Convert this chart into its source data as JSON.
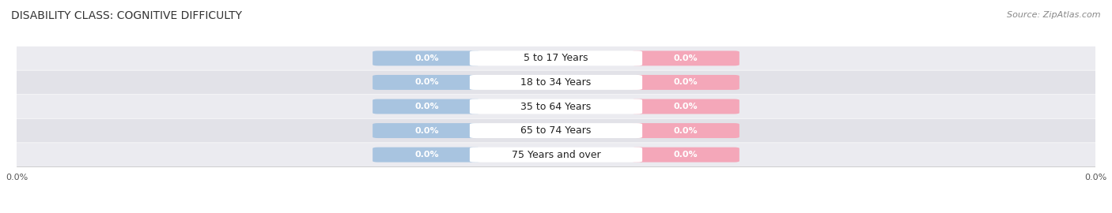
{
  "title": "DISABILITY CLASS: COGNITIVE DIFFICULTY",
  "source": "Source: ZipAtlas.com",
  "categories": [
    "5 to 17 Years",
    "18 to 34 Years",
    "35 to 64 Years",
    "65 to 74 Years",
    "75 Years and over"
  ],
  "male_values": [
    0.0,
    0.0,
    0.0,
    0.0,
    0.0
  ],
  "female_values": [
    0.0,
    0.0,
    0.0,
    0.0,
    0.0
  ],
  "male_color": "#a8c4e0",
  "female_color": "#f4a7b9",
  "title_fontsize": 10,
  "source_fontsize": 8,
  "category_fontsize": 9,
  "value_fontsize": 8,
  "background_color": "#ffffff",
  "legend_male_color": "#7bafd4",
  "legend_female_color": "#f08098",
  "row_bg_even": "#ebebf0",
  "row_bg_odd": "#e2e2e8",
  "xlim": [
    -5.0,
    5.0
  ],
  "bar_half": 0.9,
  "label_half": 0.75
}
